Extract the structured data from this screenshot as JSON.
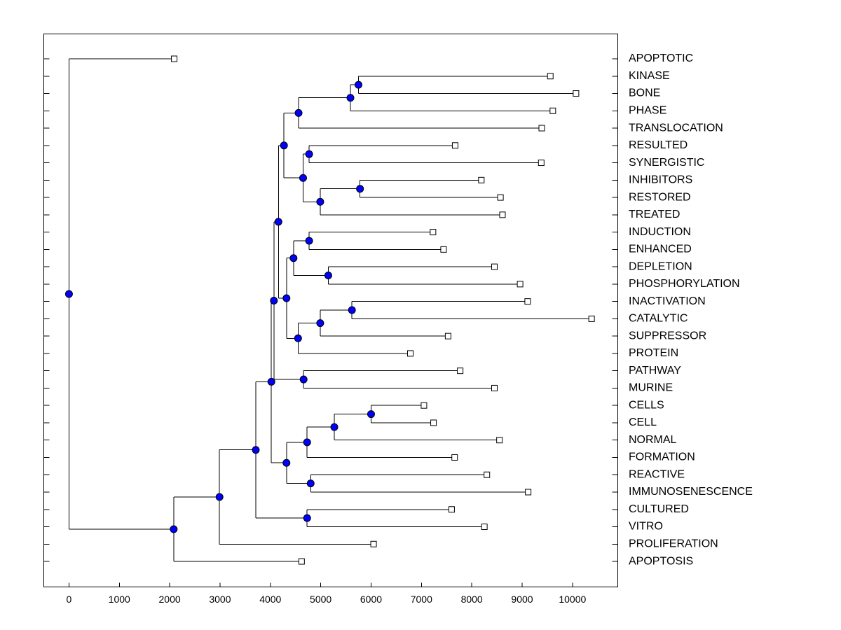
{
  "chart_data": {
    "type": "dendrogram",
    "xlim": [
      -500,
      10900
    ],
    "xticks": [
      0,
      1000,
      2000,
      3000,
      4000,
      5000,
      6000,
      7000,
      8000,
      9000,
      10000
    ],
    "node_color": "#0000ff",
    "tree": {
      "height": 0,
      "children": [
        {
          "label": "APOPTOTIC",
          "value": 2090
        },
        {
          "height": 2080,
          "children": [
            {
              "height": 2990,
              "children": [
                {
                  "height": 3710,
                  "children": [
                    {
                      "height": 4020,
                      "children": [
                        {
                          "height": 4070,
                          "children": [
                            {
                              "height": 4160,
                              "children": [
                                {
                                  "height": 4270,
                                  "children": [
                                    {
                                      "height": 4560,
                                      "children": [
                                        {
                                          "height": 5590,
                                          "children": [
                                            {
                                              "height": 5750,
                                              "children": [
                                                {
                                                  "label": "KINASE",
                                                  "value": 9560
                                                },
                                                {
                                                  "label": "BONE",
                                                  "value": 10070
                                                }
                                              ]
                                            },
                                            {
                                              "label": "PHASE",
                                              "value": 9610
                                            }
                                          ]
                                        },
                                        {
                                          "label": "TRANSLOCATION",
                                          "value": 9390
                                        }
                                      ]
                                    },
                                    {
                                      "height": 4650,
                                      "children": [
                                        {
                                          "height": 4770,
                                          "children": [
                                            {
                                              "label": "RESULTED",
                                              "value": 7670
                                            },
                                            {
                                              "label": "SYNERGISTIC",
                                              "value": 9380
                                            }
                                          ]
                                        },
                                        {
                                          "height": 4990,
                                          "children": [
                                            {
                                              "height": 5780,
                                              "children": [
                                                {
                                                  "label": "INHIBITORS",
                                                  "value": 8190
                                                },
                                                {
                                                  "label": "RESTORED",
                                                  "value": 8570
                                                }
                                              ]
                                            },
                                            {
                                              "label": "TREATED",
                                              "value": 8610
                                            }
                                          ]
                                        }
                                      ]
                                    }
                                  ]
                                },
                                {
                                  "height": 4320,
                                  "children": [
                                    {
                                      "height": 4460,
                                      "children": [
                                        {
                                          "height": 4770,
                                          "children": [
                                            {
                                              "label": "INDUCTION",
                                              "value": 7230
                                            },
                                            {
                                              "label": "ENHANCED",
                                              "value": 7440
                                            }
                                          ]
                                        },
                                        {
                                          "height": 5150,
                                          "children": [
                                            {
                                              "label": "DEPLETION",
                                              "value": 8450
                                            },
                                            {
                                              "label": "PHOSPHORYLATION",
                                              "value": 8960
                                            }
                                          ]
                                        }
                                      ]
                                    },
                                    {
                                      "height": 4550,
                                      "children": [
                                        {
                                          "height": 4990,
                                          "children": [
                                            {
                                              "height": 5620,
                                              "children": [
                                                {
                                                  "label": "INACTIVATION",
                                                  "value": 9110
                                                },
                                                {
                                                  "label": "CATALYTIC",
                                                  "value": 10380
                                                }
                                              ]
                                            },
                                            {
                                              "label": "SUPPRESSOR",
                                              "value": 7530
                                            }
                                          ]
                                        },
                                        {
                                          "label": "PROTEIN",
                                          "value": 6780
                                        }
                                      ]
                                    }
                                  ]
                                }
                              ]
                            },
                            {
                              "height": 4660,
                              "children": [
                                {
                                  "label": "PATHWAY",
                                  "value": 7770
                                },
                                {
                                  "label": "MURINE",
                                  "value": 8450
                                }
                              ]
                            }
                          ]
                        },
                        {
                          "height": 4320,
                          "children": [
                            {
                              "height": 4730,
                              "children": [
                                {
                                  "height": 5270,
                                  "children": [
                                    {
                                      "height": 6000,
                                      "children": [
                                        {
                                          "label": "CELLS",
                                          "value": 7050
                                        },
                                        {
                                          "label": "CELL",
                                          "value": 7240
                                        }
                                      ]
                                    },
                                    {
                                      "label": "NORMAL",
                                      "value": 8550
                                    }
                                  ]
                                },
                                {
                                  "label": "FORMATION",
                                  "value": 7660
                                }
                              ]
                            },
                            {
                              "height": 4800,
                              "children": [
                                {
                                  "label": "REACTIVE",
                                  "value": 8300
                                },
                                {
                                  "label": "IMMUNOSENESCENCE",
                                  "value": 9120
                                }
                              ]
                            }
                          ]
                        }
                      ]
                    },
                    {
                      "height": 4730,
                      "children": [
                        {
                          "label": "CULTURED",
                          "value": 7600
                        },
                        {
                          "label": "VITRO",
                          "value": 8250
                        }
                      ]
                    }
                  ]
                },
                {
                  "label": "PROLIFERATION",
                  "value": 6050
                }
              ]
            },
            {
              "label": "APOPTOSIS",
              "value": 4620
            }
          ]
        }
      ]
    }
  }
}
